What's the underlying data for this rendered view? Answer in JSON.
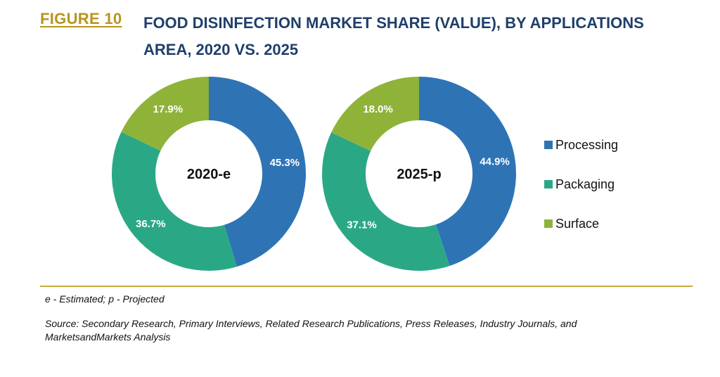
{
  "figure": {
    "label": "FIGURE 10",
    "title": "FOOD DISINFECTION MARKET SHARE (VALUE), BY APPLICATIONS AREA, 2020 VS. 2025"
  },
  "chart_data": {
    "type": "pie",
    "variant": "donut",
    "categories": [
      "Processing",
      "Packaging",
      "Surface"
    ],
    "colors": [
      "#2e74b5",
      "#2aa886",
      "#8fb339"
    ],
    "legend_position": "right",
    "charts": [
      {
        "center_label": "2020-e",
        "values": [
          45.3,
          36.7,
          17.9
        ],
        "labels": [
          "45.3%",
          "36.7%",
          "17.9%"
        ]
      },
      {
        "center_label": "2025-p",
        "values": [
          44.9,
          37.1,
          18.0
        ],
        "labels": [
          "44.9%",
          "37.1%",
          "18.0%"
        ]
      }
    ]
  },
  "footnote": "e - Estimated; p - Projected",
  "source": "Source: Secondary Research, Primary Interviews, Related Research Publications, Press Releases, Industry Journals, and MarketsandMarkets Analysis"
}
